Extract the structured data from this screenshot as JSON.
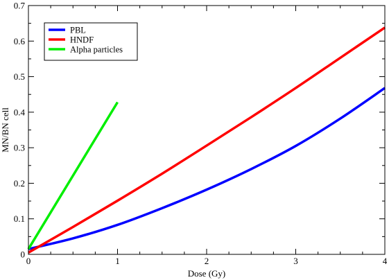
{
  "chart_data": {
    "type": "line",
    "title": "",
    "xlabel": "Dose (Gy)",
    "ylabel": "MN/BN cell",
    "xlim": [
      0,
      4
    ],
    "ylim": [
      0,
      0.7
    ],
    "xticks": [
      "0",
      "1",
      "2",
      "3",
      "4"
    ],
    "yticks": [
      "0",
      "0.1",
      "0.2",
      "0.3",
      "0.4",
      "0.5",
      "0.6",
      "0.7"
    ],
    "grid": false,
    "legend_position": "top-left",
    "series": [
      {
        "name": "PBL",
        "color": "#0000ff",
        "x": [
          0,
          0.5,
          1,
          1.5,
          2,
          2.5,
          3,
          3.5,
          4
        ],
        "y": [
          0.015,
          0.045,
          0.083,
          0.13,
          0.182,
          0.24,
          0.305,
          0.382,
          0.468
        ]
      },
      {
        "name": "HNDF",
        "color": "#ff0000",
        "x": [
          0,
          0.5,
          1,
          1.5,
          2,
          2.5,
          3,
          3.5,
          4
        ],
        "y": [
          0.005,
          0.077,
          0.151,
          0.227,
          0.306,
          0.386,
          0.468,
          0.553,
          0.638
        ]
      },
      {
        "name": "Alpha particles",
        "color": "#00ee00",
        "x": [
          0,
          1
        ],
        "y": [
          0.015,
          0.428
        ]
      }
    ]
  }
}
